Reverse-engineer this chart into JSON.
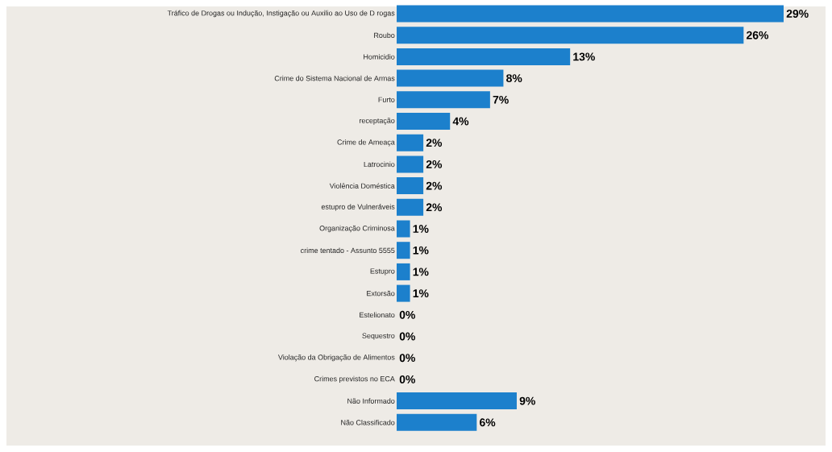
{
  "chart_data": {
    "type": "bar",
    "orientation": "horizontal",
    "categories": [
      "Tráfico de Drogas ou Indução, Instigação ou Auxilio ao Uso de D rogas",
      "Roubo",
      "Homicidio",
      "Crime do Sistema Nacional de Armas",
      "Furto",
      "receptação",
      "Crime de Ameaça",
      "Latrocinio",
      "Violência Doméstica",
      "estupro de Vulneráveis",
      "Organização Criminosa",
      "crime tentado - Assunto 5555",
      "Estupro",
      "Extorsão",
      "Estelionato",
      "Sequestro",
      "Violação da Obrigação de Alimentos",
      "Crimes previstos no ECA",
      "Não Informado",
      "Não Classificado"
    ],
    "values": [
      29,
      26,
      13,
      8,
      7,
      4,
      2,
      2,
      2,
      2,
      1,
      1,
      1,
      1,
      0,
      0,
      0,
      0,
      9,
      6
    ],
    "value_labels": [
      "29%",
      "26%",
      "13%",
      "8%",
      "7%",
      "4%",
      "2%",
      "2%",
      "2%",
      "2%",
      "1%",
      "1%",
      "1%",
      "1%",
      "0%",
      "0%",
      "0%",
      "0%",
      "9%",
      "6%"
    ],
    "color": "#1c80cc"
  }
}
